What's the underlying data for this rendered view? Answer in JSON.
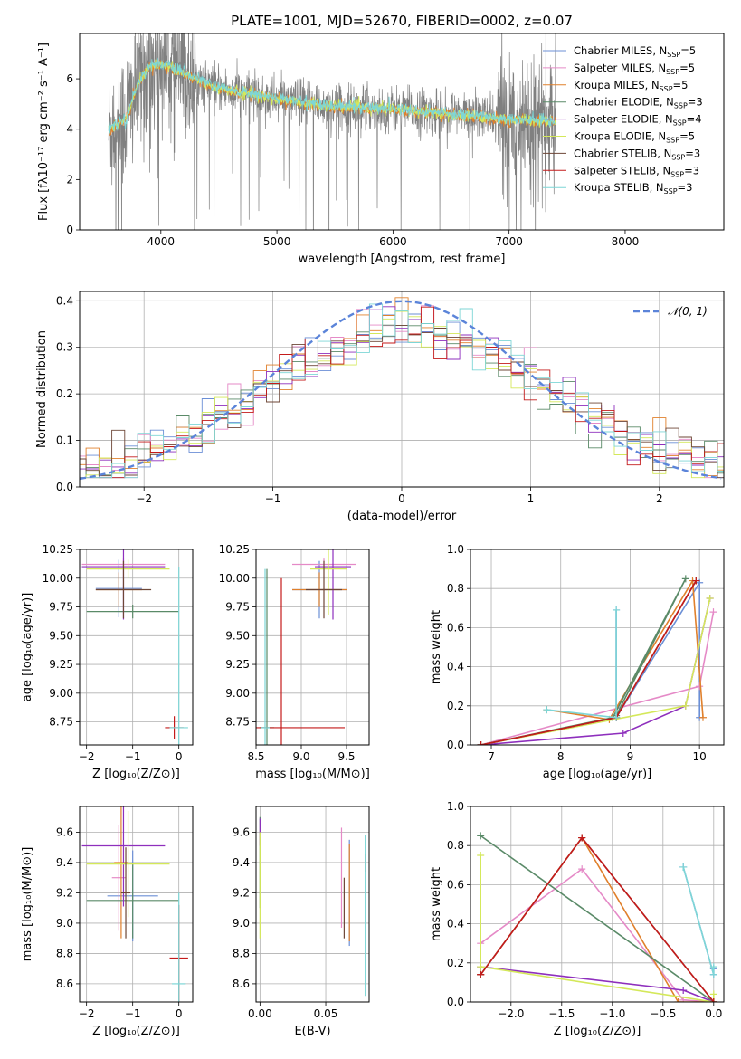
{
  "figure": {
    "title": "PLATE=1001, MJD=52670, FIBERID=0002, z=0.07"
  },
  "colors": {
    "spectrum": "#808080",
    "grid": "#b0b0b0",
    "normal_curve": "#5b84d9"
  },
  "models": [
    {
      "label": "Chabrier MILES, N",
      "sub": "SSP",
      "suffix": "=5",
      "color": "#6b8fd6"
    },
    {
      "label": "Salpeter MILES, N",
      "sub": "SSP",
      "suffix": "=5",
      "color": "#e58ac7"
    },
    {
      "label": "Kroupa MILES, N",
      "sub": "SSP",
      "suffix": "=5",
      "color": "#e0802c"
    },
    {
      "label": "Chabrier ELODIE, N",
      "sub": "SSP",
      "suffix": "=3",
      "color": "#5a8a68"
    },
    {
      "label": "Salpeter ELODIE, N",
      "sub": "SSP",
      "suffix": "=4",
      "color": "#8e2fbd"
    },
    {
      "label": "Kroupa ELODIE, N",
      "sub": "SSP",
      "suffix": "=5",
      "color": "#d4e85a"
    },
    {
      "label": "Chabrier STELIB, N",
      "sub": "SSP",
      "suffix": "=3",
      "color": "#6d4636"
    },
    {
      "label": "Salpeter STELIB, N",
      "sub": "SSP",
      "suffix": "=3",
      "color": "#c41b1b"
    },
    {
      "label": "Kroupa STELIB, N",
      "sub": "SSP",
      "suffix": "=3",
      "color": "#7dd6d6"
    }
  ],
  "chart_data": [
    {
      "id": "spectrum",
      "type": "line",
      "xlabel": "wavelength [Angstrom, rest frame]",
      "ylabel": "Flux [fλ10⁻¹⁷ erg cm⁻² s⁻¹ A⁻¹]",
      "xlim": [
        3300,
        8850
      ],
      "ylim": [
        0,
        7.8
      ],
      "xticks": [
        "4000",
        "5000",
        "6000",
        "7000",
        "8000"
      ],
      "yticks": [
        "0",
        "2",
        "4",
        "6"
      ],
      "data_range": [
        3550,
        7400
      ],
      "continuum": {
        "x": [
          3550,
          3700,
          3800,
          3900,
          4000,
          4200,
          4500,
          5000,
          5500,
          6000,
          6500,
          7000,
          7400
        ],
        "y": [
          4.0,
          4.4,
          5.8,
          6.5,
          6.7,
          6.2,
          5.6,
          5.2,
          4.9,
          4.8,
          4.6,
          4.4,
          4.3
        ]
      },
      "model_continuum": {
        "x": [
          3550,
          3700,
          3800,
          3900,
          4000,
          4200,
          4500,
          5000,
          5500,
          6000,
          6500,
          7000,
          7400
        ],
        "y": [
          4.0,
          4.4,
          5.8,
          6.5,
          6.6,
          6.2,
          5.6,
          5.2,
          4.9,
          4.8,
          4.6,
          4.4,
          4.3
        ]
      }
    },
    {
      "id": "residuals",
      "type": "line",
      "xlabel": "(data-model)/error",
      "ylabel": "Normed distribution",
      "xlim": [
        -2.5,
        2.5
      ],
      "ylim": [
        0,
        0.42
      ],
      "xticks": [
        "−2",
        "−1",
        "0",
        "1",
        "2"
      ],
      "yticks": [
        "0.0",
        "0.1",
        "0.2",
        "0.3",
        "0.4"
      ],
      "legend": "𝒩(0, 1)",
      "bin_width": 0.1
    },
    {
      "id": "age_vs_Z",
      "type": "scatter",
      "xlabel": "Z [log₁₀(Z/Z⊙)]",
      "ylabel": "age  [log₁₀(age/yr)]",
      "xlim": [
        -2.15,
        0.3
      ],
      "ylim": [
        8.55,
        10.25
      ],
      "xticks": [
        "−2",
        "−1",
        "0"
      ],
      "yticks": [
        "8.75",
        "9.00",
        "9.25",
        "9.50",
        "9.75",
        "10.00",
        "10.25"
      ],
      "points": [
        {
          "model": 0,
          "x": -1.3,
          "y": 9.91,
          "xerr": 0.5,
          "yerr": 0.25
        },
        {
          "model": 1,
          "x": -1.2,
          "y": 10.12,
          "xerr": 0.9,
          "yerr": 0.05
        },
        {
          "model": 2,
          "x": -1.3,
          "y": 9.9,
          "xerr": 0.5,
          "yerr": 0.15
        },
        {
          "model": 3,
          "x": -1.0,
          "y": 9.71,
          "xerr": 1.0,
          "yerr": 0.06
        },
        {
          "model": 4,
          "x": -1.2,
          "y": 10.1,
          "xerr": 0.9,
          "yerr": 0.46
        },
        {
          "model": 5,
          "x": -1.1,
          "y": 10.08,
          "xerr": 0.9,
          "yerr": 0.08
        },
        {
          "model": 6,
          "x": -1.2,
          "y": 9.9,
          "xerr": 0.6,
          "yerr": 0.25
        },
        {
          "model": 7,
          "x": -0.1,
          "y": 8.7,
          "xerr": 0.2,
          "yerr": 0.1
        },
        {
          "model": 8,
          "x": 0.0,
          "y": 8.7,
          "xerr": 0.2,
          "yerr": 1.4
        }
      ]
    },
    {
      "id": "age_vs_mass",
      "type": "scatter",
      "xlabel": "mass [log₁₀(M/M⊙)]",
      "ylabel": "",
      "xlim": [
        8.5,
        9.75
      ],
      "ylim": [
        8.55,
        10.25
      ],
      "xticks": [
        "8.5",
        "9.0",
        "9.5"
      ],
      "yticks": [
        "8.75",
        "9.00",
        "9.25",
        "9.50",
        "9.75",
        "10.00",
        "10.25"
      ],
      "points": [
        {
          "model": 0,
          "x": 9.2,
          "y": 9.9,
          "xerr": 0.3,
          "yerr": 0.25
        },
        {
          "model": 1,
          "x": 9.25,
          "y": 10.12,
          "xerr": 0.35,
          "yerr": 0.05
        },
        {
          "model": 2,
          "x": 9.2,
          "y": 9.9,
          "xerr": 0.3,
          "yerr": 0.15
        },
        {
          "model": 3,
          "x": 8.62,
          "y": 8.7,
          "xerr": 0.08,
          "yerr": 1.38
        },
        {
          "model": 4,
          "x": 9.35,
          "y": 10.1,
          "xerr": 0.2,
          "yerr": 0.46
        },
        {
          "model": 5,
          "x": 9.3,
          "y": 10.08,
          "xerr": 0.2,
          "yerr": 0.4
        },
        {
          "model": 6,
          "x": 9.25,
          "y": 9.9,
          "xerr": 0.2,
          "yerr": 0.25
        },
        {
          "model": 7,
          "x": 8.78,
          "y": 8.7,
          "xerr": 0.7,
          "yerr": 1.3
        },
        {
          "model": 8,
          "x": 8.6,
          "y": 8.7,
          "xerr": 0.05,
          "yerr": 1.38
        }
      ]
    },
    {
      "id": "weight_vs_age",
      "type": "line",
      "xlabel": "age  [log₁₀(age/yr)]",
      "ylabel": "mass weight",
      "xlim": [
        6.7,
        10.35
      ],
      "ylim": [
        0,
        1.0
      ],
      "xticks": [
        "7",
        "8",
        "9",
        "10"
      ],
      "yticks": [
        "0.0",
        "0.2",
        "0.4",
        "0.6",
        "0.8",
        "1.0"
      ],
      "series": [
        {
          "model": 0,
          "x": [
            8.8,
            8.8,
            10.0,
            10.0
          ],
          "y": [
            0.69,
            0.14,
            0.83,
            0.14
          ]
        },
        {
          "model": 1,
          "x": [
            6.85,
            10.0,
            10.2
          ],
          "y": [
            0.0,
            0.3,
            0.68
          ]
        },
        {
          "model": 2,
          "x": [
            7.8,
            8.7,
            9.9,
            10.05
          ],
          "y": [
            0.18,
            0.13,
            0.84,
            0.14
          ]
        },
        {
          "model": 3,
          "x": [
            6.85,
            8.75,
            9.8,
            8.8
          ],
          "y": [
            0.0,
            0.14,
            0.85,
            0.15
          ]
        },
        {
          "model": 4,
          "x": [
            6.85,
            8.9,
            9.8,
            10.15
          ],
          "y": [
            0.0,
            0.06,
            0.2,
            0.75
          ]
        },
        {
          "model": 5,
          "x": [
            6.85,
            9.8,
            10.15
          ],
          "y": [
            0.0,
            0.2,
            0.75
          ]
        },
        {
          "model": 6,
          "x": [
            6.85,
            8.8,
            9.95
          ],
          "y": [
            0.0,
            0.14,
            0.84
          ]
        },
        {
          "model": 7,
          "x": [
            6.85,
            8.8,
            9.95
          ],
          "y": [
            0.0,
            0.14,
            0.84
          ]
        },
        {
          "model": 8,
          "x": [
            7.8,
            8.8,
            8.8
          ],
          "y": [
            0.18,
            0.14,
            0.69
          ]
        }
      ]
    },
    {
      "id": "mass_vs_Z",
      "type": "scatter",
      "xlabel": "Z [log₁₀(Z/Z⊙)]",
      "ylabel": "mass [log₁₀(M/M⊙)]",
      "xlim": [
        -2.15,
        0.3
      ],
      "ylim": [
        8.48,
        9.77
      ],
      "xticks": [
        "−2",
        "−1",
        "0"
      ],
      "yticks": [
        "8.6",
        "8.8",
        "9.0",
        "9.2",
        "9.4",
        "9.6"
      ],
      "points": [
        {
          "model": 0,
          "x": -1.0,
          "y": 9.18,
          "xerr": 0.55,
          "yerr": 0.3
        },
        {
          "model": 1,
          "x": -1.3,
          "y": 9.3,
          "xerr": 0.15,
          "yerr": 0.35
        },
        {
          "model": 2,
          "x": -1.25,
          "y": 9.4,
          "xerr": 0.15,
          "yerr": 0.5
        },
        {
          "model": 3,
          "x": -1.0,
          "y": 9.15,
          "xerr": 1.0,
          "yerr": 0.25
        },
        {
          "model": 4,
          "x": -1.2,
          "y": 9.51,
          "xerr": 0.9,
          "yerr": 0.4
        },
        {
          "model": 5,
          "x": -1.1,
          "y": 9.39,
          "xerr": 0.9,
          "yerr": 0.35
        },
        {
          "model": 6,
          "x": -1.15,
          "y": 9.2,
          "xerr": 0.1,
          "yerr": 0.3
        },
        {
          "model": 7,
          "x": 0.0,
          "y": 8.77,
          "xerr": 0.2,
          "yerr": 0.35
        },
        {
          "model": 8,
          "x": 0.0,
          "y": 8.6,
          "xerr": 0.15,
          "yerr": 0.6
        }
      ]
    },
    {
      "id": "mass_vs_ebv",
      "type": "scatter",
      "xlabel": "E(B-V)",
      "ylabel": "",
      "xlim": [
        -0.003,
        0.083
      ],
      "ylim": [
        8.48,
        9.77
      ],
      "xticks": [
        "0.00",
        "0.05"
      ],
      "yticks": [
        "8.6",
        "8.8",
        "9.0",
        "9.2",
        "9.4",
        "9.6"
      ],
      "points": [
        {
          "model": 0,
          "x": 0.068,
          "y": 9.2,
          "yerr": 0.35
        },
        {
          "model": 1,
          "x": 0.062,
          "y": 9.3,
          "yerr": 0.33
        },
        {
          "model": 2,
          "x": 0.068,
          "y": 9.2,
          "yerr": 0.32
        },
        {
          "model": 3,
          "x": 0.0,
          "y": 9.4,
          "yerr": 0.3
        },
        {
          "model": 4,
          "x": 0.0,
          "y": 9.6,
          "yerr": 0.09
        },
        {
          "model": 5,
          "x": 0.0,
          "y": 9.25,
          "yerr": 0.35
        },
        {
          "model": 6,
          "x": 0.064,
          "y": 9.1,
          "yerr": 0.2
        },
        {
          "model": 7,
          "x": 0.08,
          "y": 9.4,
          "yerr": 0.06
        },
        {
          "model": 8,
          "x": 0.08,
          "y": 9.05,
          "yerr": 0.53
        }
      ]
    },
    {
      "id": "weight_vs_Z",
      "type": "line",
      "xlabel": "Z [log₁₀(Z/Z⊙)]",
      "ylabel": "mass weight",
      "xlim": [
        -2.4,
        0.1
      ],
      "ylim": [
        0,
        1.0
      ],
      "xticks": [
        "−2.0",
        "−1.5",
        "−1.0",
        "−0.5",
        "0.0"
      ],
      "yticks": [
        "0.0",
        "0.2",
        "0.4",
        "0.6",
        "0.8",
        "1.0"
      ],
      "series": [
        {
          "model": 0,
          "x": [
            -0.3,
            0.0,
            0.0
          ],
          "y": [
            0.69,
            0.14,
            0.17
          ]
        },
        {
          "model": 1,
          "x": [
            -2.3,
            -1.3,
            -0.3,
            0.0
          ],
          "y": [
            0.3,
            0.68,
            0.01,
            0.0
          ]
        },
        {
          "model": 2,
          "x": [
            -2.3,
            -1.3,
            -0.35,
            0.0
          ],
          "y": [
            0.14,
            0.84,
            0.0,
            0.0
          ]
        },
        {
          "model": 3,
          "x": [
            -2.3,
            0.0
          ],
          "y": [
            0.85,
            0.0
          ]
        },
        {
          "model": 4,
          "x": [
            -2.3,
            -0.3,
            0.0
          ],
          "y": [
            0.18,
            0.06,
            0.0
          ]
        },
        {
          "model": 5,
          "x": [
            -2.3,
            -2.3,
            0.0,
            0.0
          ],
          "y": [
            0.75,
            0.18,
            0.0,
            0.04
          ]
        },
        {
          "model": 6,
          "x": [
            -2.3,
            -1.3,
            0.0
          ],
          "y": [
            0.14,
            0.84,
            0.0
          ]
        },
        {
          "model": 7,
          "x": [
            -2.3,
            -1.3,
            0.0
          ],
          "y": [
            0.14,
            0.84,
            0.0
          ]
        },
        {
          "model": 8,
          "x": [
            -0.3,
            0.0,
            0.0
          ],
          "y": [
            0.69,
            0.14,
            0.18
          ]
        }
      ]
    }
  ]
}
